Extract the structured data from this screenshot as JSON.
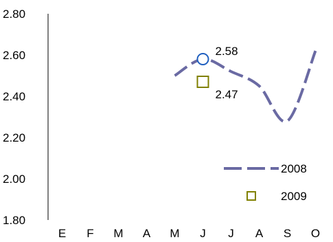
{
  "chart_data": {
    "type": "line",
    "categories": [
      "E",
      "F",
      "M",
      "A",
      "M",
      "J",
      "J",
      "A",
      "S",
      "O"
    ],
    "ylim": [
      1.8,
      2.8
    ],
    "yticks": [
      "1.80",
      "2.00",
      "2.20",
      "2.40",
      "2.60",
      "2.80"
    ],
    "grid": false,
    "legend_position": "bottom-right",
    "series": [
      {
        "name": "2008",
        "style": "dashed-line",
        "color": "#6a6aa3",
        "values": [
          null,
          null,
          null,
          null,
          2.5,
          2.58,
          2.52,
          2.45,
          2.28,
          2.62
        ]
      },
      {
        "name": "2009",
        "style": "square-marker",
        "color": "#808000",
        "values": [
          null,
          null,
          null,
          null,
          null,
          2.47,
          null,
          null,
          null,
          null
        ]
      }
    ],
    "highlight": {
      "category": "J",
      "marker": "circle",
      "color": "#1f5fbf",
      "value": 2.58
    },
    "data_labels": [
      {
        "text": "2.58",
        "category": "J",
        "series": "2008"
      },
      {
        "text": "2.47",
        "category": "J",
        "series": "2009"
      }
    ]
  }
}
